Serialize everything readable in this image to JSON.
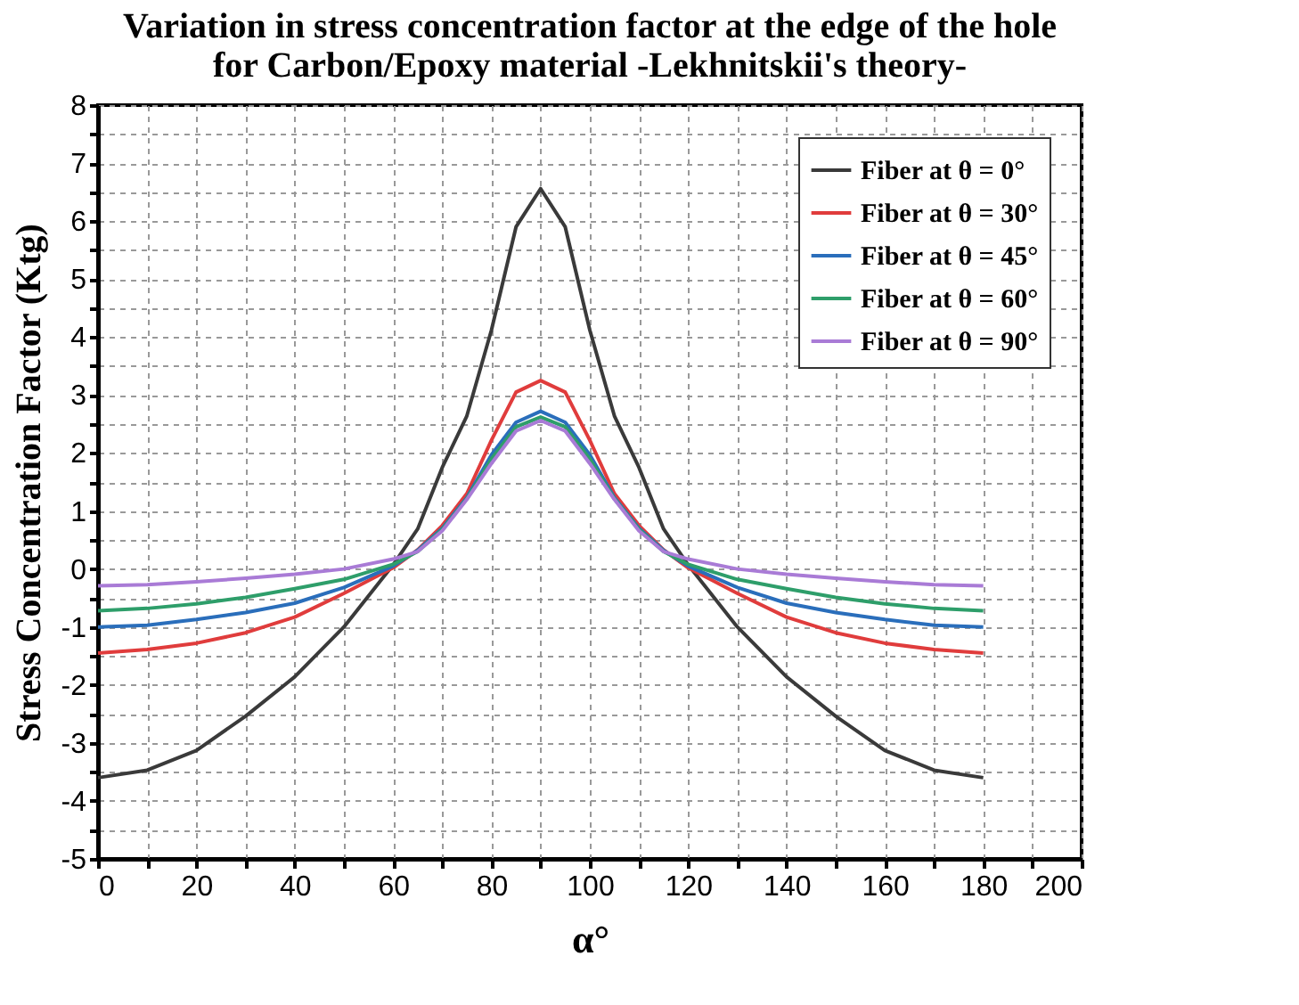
{
  "chart_data": {
    "type": "line",
    "title": [
      "Variation in stress concentration factor at the edge of the hole",
      "for Carbon/Epoxy material -Lekhnitskii's theory-"
    ],
    "xlabel": "α°",
    "ylabel": "Stress Concentration Factor (Ktg)",
    "x": [
      0,
      10,
      20,
      30,
      40,
      50,
      60,
      65,
      70,
      75,
      80,
      85,
      90,
      95,
      100,
      105,
      110,
      115,
      120,
      130,
      140,
      150,
      160,
      170,
      180
    ],
    "series": [
      {
        "name": "Fiber at θ = 0°",
        "color": "#3a3a3a",
        "values": [
          -3.6,
          -3.47,
          -3.13,
          -2.54,
          -1.86,
          -1.0,
          0.07,
          0.69,
          1.75,
          2.64,
          4.12,
          5.9,
          6.56,
          5.9,
          4.12,
          2.64,
          1.75,
          0.69,
          0.07,
          -1.0,
          -1.86,
          -2.54,
          -3.13,
          -3.47,
          -3.6
        ]
      },
      {
        "name": "Fiber at θ = 30°",
        "color": "#e03c3c",
        "values": [
          -1.45,
          -1.39,
          -1.28,
          -1.1,
          -0.83,
          -0.42,
          0.02,
          0.33,
          0.75,
          1.3,
          2.22,
          3.05,
          3.25,
          3.05,
          2.22,
          1.3,
          0.75,
          0.33,
          0.02,
          -0.42,
          -0.83,
          -1.1,
          -1.28,
          -1.39,
          -1.45
        ]
      },
      {
        "name": "Fiber at θ = 45°",
        "color": "#2a6ebb",
        "values": [
          -1.0,
          -0.97,
          -0.87,
          -0.75,
          -0.59,
          -0.32,
          0.05,
          0.32,
          0.7,
          1.23,
          1.97,
          2.53,
          2.72,
          2.53,
          1.97,
          1.23,
          0.7,
          0.32,
          0.05,
          -0.32,
          -0.59,
          -0.75,
          -0.87,
          -0.97,
          -1.0
        ]
      },
      {
        "name": "Fiber at θ = 60°",
        "color": "#2e9e6a",
        "values": [
          -0.72,
          -0.68,
          -0.6,
          -0.49,
          -0.34,
          -0.18,
          0.08,
          0.3,
          0.68,
          1.21,
          1.9,
          2.45,
          2.62,
          2.45,
          1.9,
          1.21,
          0.68,
          0.3,
          0.08,
          -0.18,
          -0.34,
          -0.49,
          -0.6,
          -0.68,
          -0.72
        ]
      },
      {
        "name": "Fiber at θ = 90°",
        "color": "#a97bd6",
        "values": [
          -0.29,
          -0.27,
          -0.22,
          -0.16,
          -0.09,
          0.0,
          0.17,
          0.3,
          0.66,
          1.2,
          1.82,
          2.38,
          2.56,
          2.38,
          1.82,
          1.2,
          0.66,
          0.3,
          0.17,
          0.0,
          -0.09,
          -0.16,
          -0.22,
          -0.27,
          -0.29
        ]
      }
    ],
    "xlim": [
      0,
      200
    ],
    "xticks": [
      0,
      {
        "value": 10,
        "label": null
      },
      20,
      {
        "value": 30,
        "label": null
      },
      40,
      {
        "value": 50,
        "label": null
      },
      60,
      {
        "value": 70,
        "label": null
      },
      80,
      {
        "value": 90,
        "label": null
      },
      100,
      {
        "value": 110,
        "label": null
      },
      120,
      {
        "value": 130,
        "label": null
      },
      140,
      {
        "value": 150,
        "label": null
      },
      160,
      {
        "value": 170,
        "label": null
      },
      180,
      {
        "value": 190,
        "label": null
      },
      200
    ],
    "ylim": [
      -5,
      8
    ],
    "yticks": [
      -5,
      {
        "value": -4.5,
        "label": null
      },
      -4,
      {
        "value": -3.5,
        "label": null
      },
      -3,
      {
        "value": -2.5,
        "label": null
      },
      -2,
      {
        "value": -1.5,
        "label": null
      },
      -1,
      {
        "value": -0.5,
        "label": null
      },
      0,
      {
        "value": 0.5,
        "label": null
      },
      1,
      {
        "value": 1.5,
        "label": null
      },
      2,
      {
        "value": 2.5,
        "label": null
      },
      3,
      {
        "value": 3.5,
        "label": null
      },
      4,
      {
        "value": 4.5,
        "label": null
      },
      5,
      {
        "value": 5.5,
        "label": null
      },
      6,
      {
        "value": 6.5,
        "label": null
      },
      7,
      {
        "value": 7.5,
        "label": null
      },
      8
    ],
    "grid": true,
    "legend": "top right",
    "marker": "none",
    "line_style": "solid"
  }
}
